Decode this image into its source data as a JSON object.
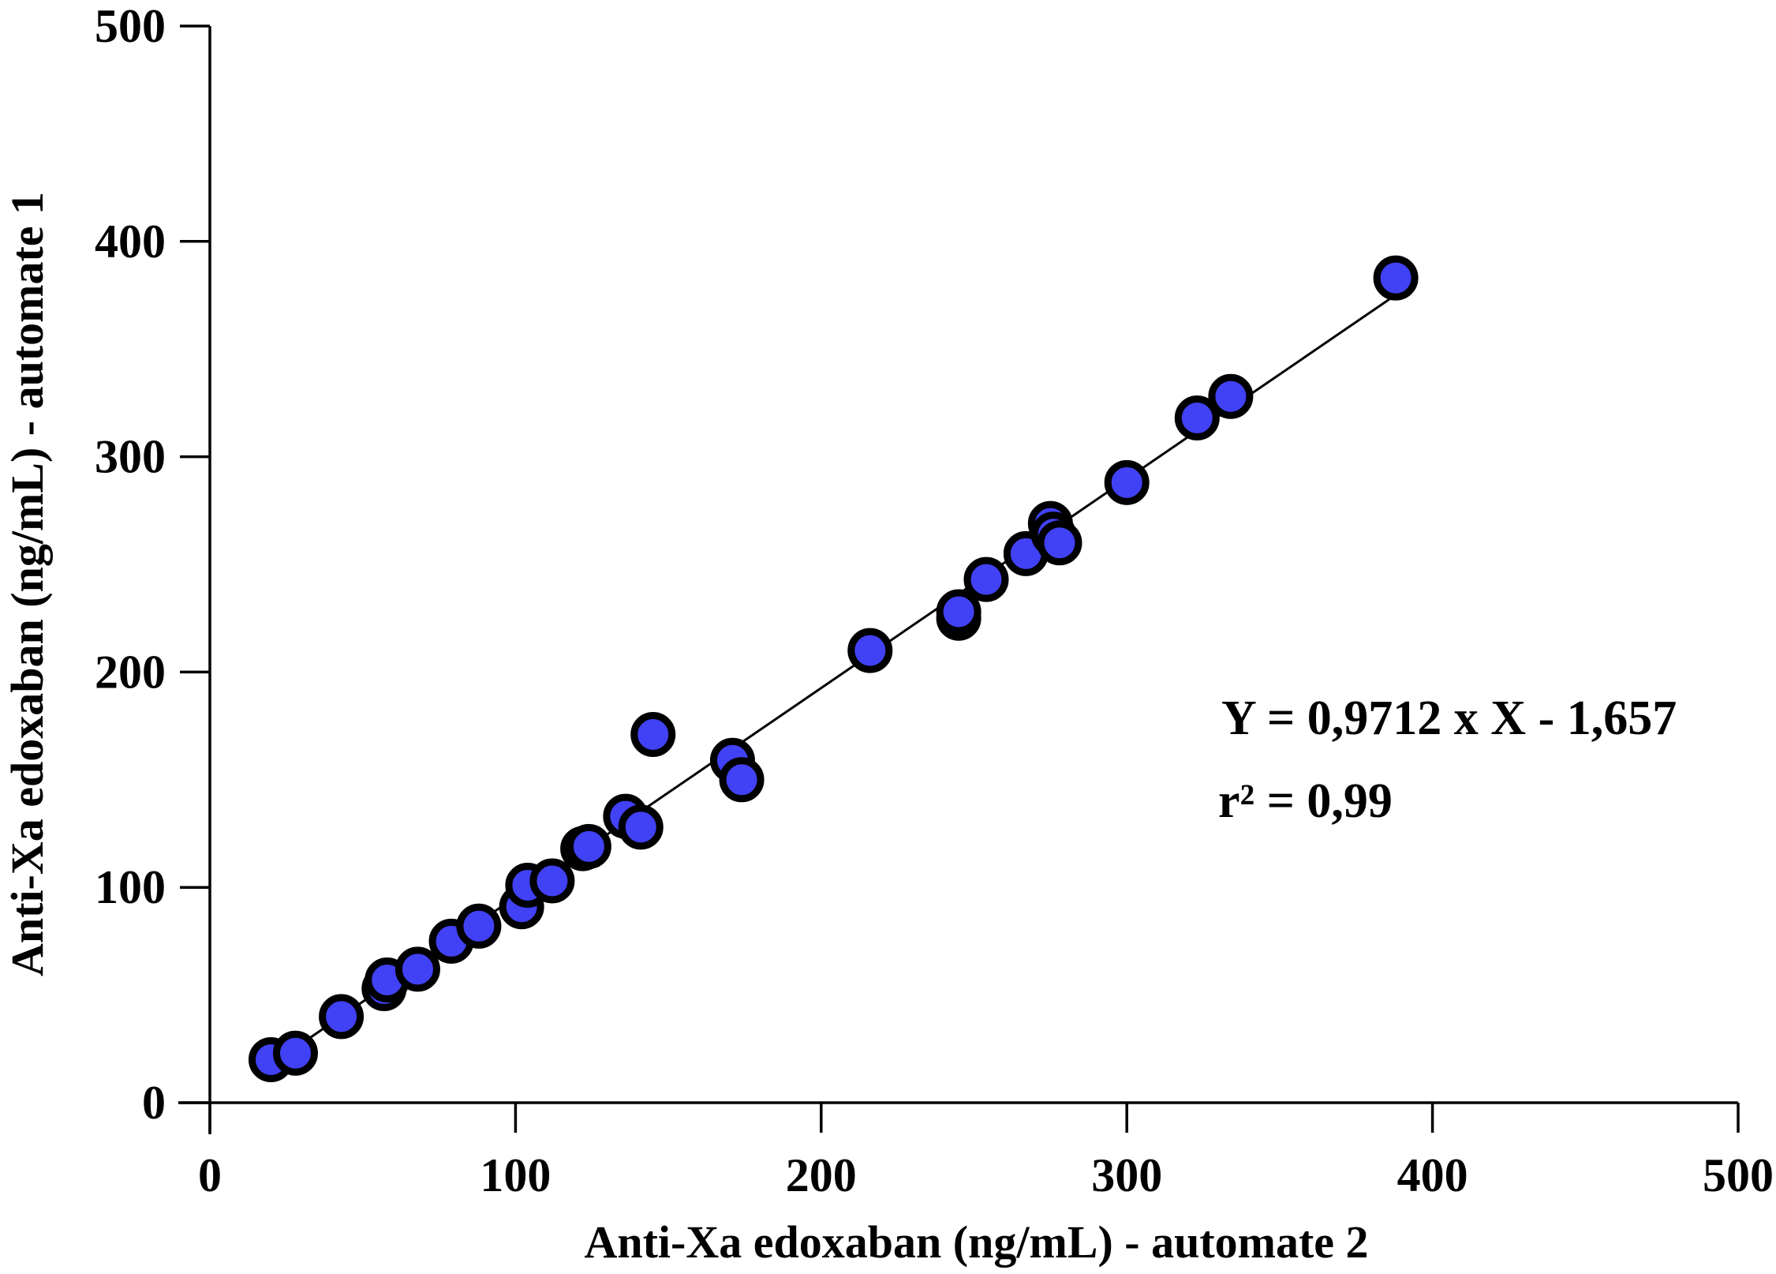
{
  "chart_data": {
    "type": "scatter",
    "xlabel": "Anti-Xa edoxaban (ng/mL) - automate 2",
    "ylabel": "Anti-Xa edoxaban (ng/mL) - automate 1",
    "xlim": [
      0,
      500
    ],
    "ylim": [
      0,
      500
    ],
    "xticks": [
      "0",
      "100",
      "200",
      "300",
      "400",
      "500"
    ],
    "yticks": [
      "0",
      "100",
      "200",
      "300",
      "400",
      "500"
    ],
    "grid": false,
    "marker_fill": "#4141f5",
    "marker_edge": "#000000",
    "points": [
      {
        "x": 20,
        "y": 20
      },
      {
        "x": 28,
        "y": 23
      },
      {
        "x": 43,
        "y": 40
      },
      {
        "x": 57,
        "y": 53
      },
      {
        "x": 58,
        "y": 57
      },
      {
        "x": 68,
        "y": 62
      },
      {
        "x": 79,
        "y": 75
      },
      {
        "x": 88,
        "y": 82
      },
      {
        "x": 102,
        "y": 91
      },
      {
        "x": 104,
        "y": 101
      },
      {
        "x": 112,
        "y": 103
      },
      {
        "x": 122,
        "y": 118
      },
      {
        "x": 124,
        "y": 119
      },
      {
        "x": 136,
        "y": 133
      },
      {
        "x": 141,
        "y": 128
      },
      {
        "x": 145,
        "y": 171
      },
      {
        "x": 171,
        "y": 159
      },
      {
        "x": 174,
        "y": 150
      },
      {
        "x": 216,
        "y": 210
      },
      {
        "x": 245,
        "y": 225
      },
      {
        "x": 245,
        "y": 228
      },
      {
        "x": 254,
        "y": 243
      },
      {
        "x": 267,
        "y": 255
      },
      {
        "x": 275,
        "y": 269
      },
      {
        "x": 276,
        "y": 264
      },
      {
        "x": 278,
        "y": 260
      },
      {
        "x": 300,
        "y": 288
      },
      {
        "x": 323,
        "y": 318
      },
      {
        "x": 334,
        "y": 328
      },
      {
        "x": 388,
        "y": 383
      }
    ],
    "regression": {
      "slope": 0.9712,
      "intercept": -1.657,
      "x_range": [
        20,
        388
      ]
    },
    "annotations": [
      "Y = 0,9712 x X - 1,657",
      "r² = 0,99"
    ]
  }
}
